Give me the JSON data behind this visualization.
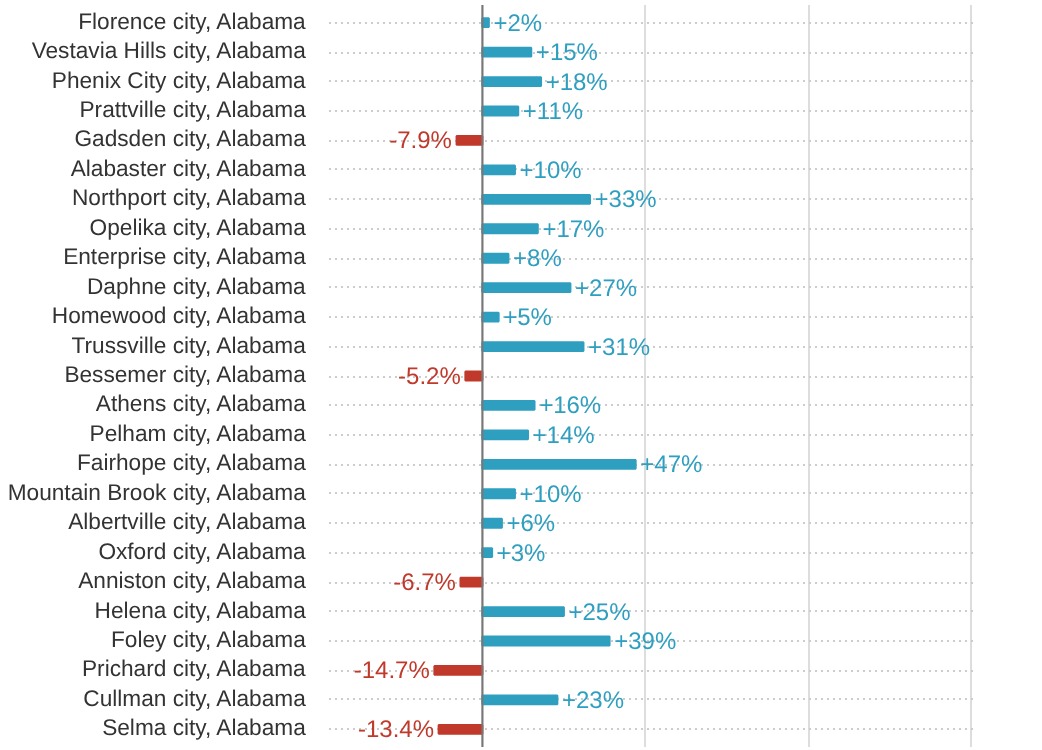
{
  "chart_data": {
    "type": "bar",
    "orientation": "horizontal",
    "grid": true,
    "tick_labels": "y",
    "categories": [
      "Florence city, Alabama",
      "Vestavia Hills city, Alabama",
      "Phenix City city, Alabama",
      "Prattville city, Alabama",
      "Gadsden city, Alabama",
      "Alabaster city, Alabama",
      "Northport city, Alabama",
      "Opelika city, Alabama",
      "Enterprise city, Alabama",
      "Daphne city, Alabama",
      "Homewood city, Alabama",
      "Trussville city, Alabama",
      "Bessemer city, Alabama",
      "Athens city, Alabama",
      "Pelham city, Alabama",
      "Fairhope city, Alabama",
      "Mountain Brook city, Alabama",
      "Albertville city, Alabama",
      "Oxford city, Alabama",
      "Anniston city, Alabama",
      "Helena city, Alabama",
      "Foley city, Alabama",
      "Prichard city, Alabama",
      "Cullman city, Alabama",
      "Selma city, Alabama"
    ],
    "values": [
      2,
      15,
      18,
      11,
      -7.9,
      10,
      33,
      17,
      8,
      27,
      5,
      31,
      -5.2,
      16,
      14,
      47,
      10,
      6,
      3,
      -6.7,
      25,
      39,
      -14.7,
      23,
      -13.4
    ],
    "value_labels": [
      "+2%",
      "+15%",
      "+18%",
      "+11%",
      "-7.9%",
      "+10%",
      "+33%",
      "+17%",
      "+8%",
      "+27%",
      "+5%",
      "+31%",
      "-5.2%",
      "+16%",
      "+14%",
      "+47%",
      "+10%",
      "+6%",
      "+3%",
      "-6.7%",
      "+25%",
      "+39%",
      "-14.7%",
      "+23%",
      "-13.4%"
    ],
    "colors": [
      "#2f9fc0",
      "#2f9fc0",
      "#2f9fc0",
      "#2f9fc0",
      "#c0392b",
      "#2f9fc0",
      "#2f9fc0",
      "#2f9fc0",
      "#2f9fc0",
      "#2f9fc0",
      "#2f9fc0",
      "#2f9fc0",
      "#c0392b",
      "#2f9fc0",
      "#2f9fc0",
      "#2f9fc0",
      "#2f9fc0",
      "#2f9fc0",
      "#2f9fc0",
      "#c0392b",
      "#2f9fc0",
      "#2f9fc0",
      "#c0392b",
      "#2f9fc0",
      "#c0392b"
    ]
  }
}
